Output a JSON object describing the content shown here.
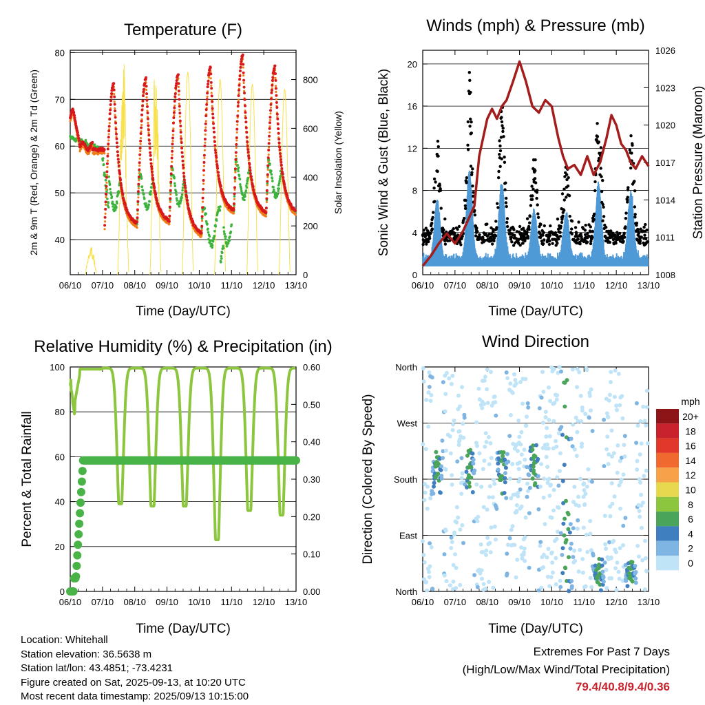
{
  "colors": {
    "t2m": "#d7191c",
    "t9m": "#f07c17",
    "td": "#3db33d",
    "solar": "#f7e04a",
    "wind": "#4f9ad6",
    "gust": "#000000",
    "pressure": "#a31d1d",
    "rh": "#8cc63f",
    "precip": "#49b348",
    "extreme": "#c8232c"
  },
  "time_ticks": [
    "06/10",
    "07/10",
    "08/10",
    "09/10",
    "10/10",
    "11/10",
    "12/10",
    "13/10"
  ],
  "chart_data": [
    {
      "id": "temperature",
      "type": "line",
      "title": "Temperature (F)",
      "xlabel": "Time (Day/UTC)",
      "ylabel": "2m & 9m T (Red, Orange) & 2m Td (Green)",
      "y2label": "Solar Insolation (Yellow)",
      "ylim": [
        32.5,
        80.5
      ],
      "y2lim": [
        0,
        920
      ],
      "yticks": [
        "40",
        "50",
        "60",
        "70",
        "80"
      ],
      "y2ticks": [
        "0",
        "200",
        "400",
        "600",
        "800"
      ],
      "grid_y": [
        40,
        50,
        60,
        70,
        80
      ],
      "daily": [
        {
          "day": "06/10",
          "tmax": 68.6,
          "tmin": 59.0,
          "tdmin": 58.5
        },
        {
          "day": "07/10",
          "tmax": 73.5,
          "tmin": 43.0,
          "tdmin": 42.5
        },
        {
          "day": "08/10",
          "tmax": 74.5,
          "tmin": 43.0,
          "tdmin": 42.5
        },
        {
          "day": "09/10",
          "tmax": 75.3,
          "tmin": 43.5,
          "tdmin": 43.5
        },
        {
          "day": "10/10",
          "tmax": 76.9,
          "tmin": 40.8,
          "tdmin": 35.0
        },
        {
          "day": "11/10",
          "tmax": 79.4,
          "tmin": 45.8,
          "tdmin": 45.0
        },
        {
          "day": "12/10",
          "tmax": 77.1,
          "tmin": 45.2,
          "tdmin": 45.0
        }
      ],
      "solar_peaks": [
        120,
        900,
        880,
        830,
        800,
        780,
        760
      ]
    },
    {
      "id": "winds",
      "type": "scatter",
      "title": "Winds (mph) & Pressure (mb)",
      "xlabel": "Time (Day/UTC)",
      "ylabel": "Sonic Wind & Gust (Blue, Black)",
      "y2label": "Station Pressure (Maroon)",
      "ylim": [
        0,
        21.3
      ],
      "y2lim": [
        1008,
        1026
      ],
      "yticks": [
        "0",
        "4",
        "8",
        "12",
        "16",
        "20"
      ],
      "y2ticks": [
        "1008",
        "1011",
        "1014",
        "1017",
        "1020",
        "1023",
        "1026"
      ],
      "grid_y": [
        4,
        8,
        12,
        16,
        20
      ],
      "daily_gust_peak": [
        12.9,
        19.3,
        17.0,
        10.9,
        10.2,
        16.7,
        14.8
      ],
      "pressure": [
        [
          0,
          1008.7
        ],
        [
          0.25,
          1009.5
        ],
        [
          0.5,
          1010.5
        ],
        [
          0.75,
          1011.3
        ],
        [
          1.0,
          1010.5
        ],
        [
          1.25,
          1011.5
        ],
        [
          1.6,
          1013.5
        ],
        [
          1.75,
          1017.5
        ],
        [
          2.0,
          1020.5
        ],
        [
          2.15,
          1021.3
        ],
        [
          2.3,
          1020.5
        ],
        [
          2.45,
          1021.5
        ],
        [
          2.6,
          1022.0
        ],
        [
          2.8,
          1023.5
        ],
        [
          3.0,
          1025.1
        ],
        [
          3.2,
          1023.5
        ],
        [
          3.4,
          1021.5
        ],
        [
          3.6,
          1021.0
        ],
        [
          3.8,
          1022.0
        ],
        [
          4.0,
          1021.5
        ],
        [
          4.2,
          1019.0
        ],
        [
          4.35,
          1017.5
        ],
        [
          4.5,
          1016.5
        ],
        [
          4.7,
          1016.8
        ],
        [
          4.9,
          1016.0
        ],
        [
          5.1,
          1017.5
        ],
        [
          5.3,
          1016.0
        ],
        [
          5.5,
          1017.0
        ],
        [
          5.7,
          1019.0
        ],
        [
          5.85,
          1020.8
        ],
        [
          6.0,
          1020.0
        ],
        [
          6.15,
          1018.5
        ],
        [
          6.3,
          1018.0
        ],
        [
          6.45,
          1017.0
        ],
        [
          6.6,
          1016.5
        ],
        [
          6.8,
          1017.5
        ],
        [
          7.0,
          1016.7
        ]
      ]
    },
    {
      "id": "rh_precip",
      "type": "line",
      "title": "Relative Humidity (%) & Precipitation (in)",
      "xlabel": "Time (Day/UTC)",
      "ylabel": "Percent & Total Rainfall",
      "ylim": [
        0,
        100
      ],
      "y2lim": [
        0,
        0.6
      ],
      "yticks": [
        "0",
        "20",
        "40",
        "60",
        "80",
        "100"
      ],
      "y2ticks": [
        "0.00",
        "0.10",
        "0.20",
        "0.30",
        "0.40",
        "0.50",
        "0.60"
      ],
      "grid_y": [
        20,
        40,
        60,
        80
      ],
      "rh_daily_min": [
        77,
        39,
        38,
        38,
        23,
        36,
        34
      ],
      "precip": [
        [
          0,
          0
        ],
        [
          0.1,
          0.0
        ],
        [
          0.2,
          0.03
        ],
        [
          0.25,
          0.12
        ],
        [
          0.3,
          0.22
        ],
        [
          0.35,
          0.31
        ],
        [
          0.42,
          0.35
        ],
        [
          7.0,
          0.35
        ]
      ]
    },
    {
      "id": "wind_direction",
      "type": "scatter",
      "title": "Wind Direction",
      "xlabel": "Time (Day/UTC)",
      "ylabel": "Direction (Colored By Speed)",
      "ylim": [
        0,
        360
      ],
      "yticks": [
        "North",
        "East",
        "South",
        "West",
        "North"
      ],
      "grid_y": [
        90,
        180,
        270
      ],
      "legend": {
        "unit": "mph",
        "labels": [
          "20+",
          "18",
          "16",
          "14",
          "12",
          "10",
          "8",
          "6",
          "4",
          "2",
          "0"
        ],
        "colors": [
          "#8e1517",
          "#c8232c",
          "#e0382a",
          "#f06a2f",
          "#f7a248",
          "#e7d84f",
          "#8cc63f",
          "#4aa55a",
          "#3f7fc0",
          "#7fb5e3",
          "#bfe3f7"
        ]
      }
    }
  ],
  "station_info": [
    "Location: Whitehall",
    "Station elevation: 36.5638 m",
    "Station lat/lon: 43.4851; -73.4231",
    "Figure created on Sat, 2025-09-13, at 10:20 UTC",
    "Most recent data timestamp: 2025/09/13 10:15:00"
  ],
  "extremes": {
    "heading": "Extremes For Past 7 Days",
    "subheading": "(High/Low/Max Wind/Total Precipitation)",
    "values": "79.4/40.8/9.4/0.36"
  }
}
